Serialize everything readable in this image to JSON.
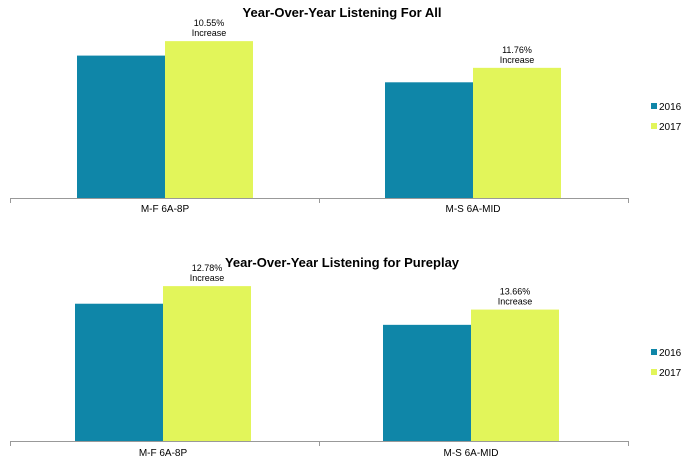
{
  "chart_data": [
    {
      "type": "bar",
      "title": "Year-Over-Year Listening For All",
      "categories": [
        "M-F 6A-8P",
        "M-S 6A-MID"
      ],
      "series": [
        {
          "name": "2016",
          "values": [
            128,
            104
          ],
          "color": "#0f86a8"
        },
        {
          "name": "2017",
          "values": [
            141,
            117
          ],
          "color": "#e2f55a"
        }
      ],
      "annotations": [
        {
          "category": "M-F 6A-8P",
          "text": "10.55%",
          "subtext": "Increase"
        },
        {
          "category": "M-S 6A-MID",
          "text": "11.76%",
          "subtext": "Increase"
        }
      ],
      "ylim": [
        0,
        160
      ],
      "grid": false,
      "legend": "right"
    },
    {
      "type": "bar",
      "title": "Year-Over-Year Listening for Pureplay",
      "categories": [
        "M-F 6A-8P",
        "M-S 6A-MID"
      ],
      "series": [
        {
          "name": "2016",
          "values": [
            117,
            99
          ],
          "color": "#0f86a8"
        },
        {
          "name": "2017",
          "values": [
            132,
            112
          ],
          "color": "#e2f55a"
        }
      ],
      "annotations": [
        {
          "category": "M-F 6A-8P",
          "text": "12.78%",
          "subtext": "Increase"
        },
        {
          "category": "M-S 6A-MID",
          "text": "13.66%",
          "subtext": "Increase"
        }
      ],
      "ylim": [
        0,
        150
      ],
      "grid": false,
      "legend": "right"
    }
  ]
}
